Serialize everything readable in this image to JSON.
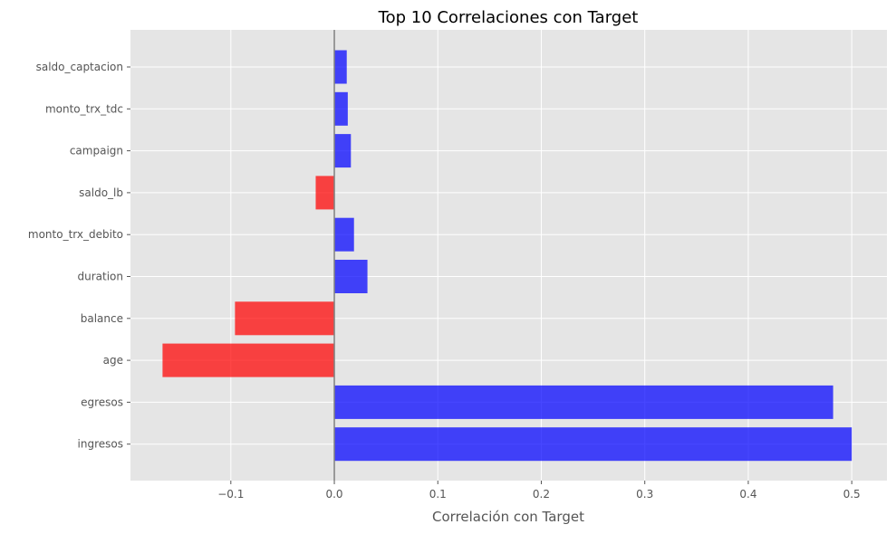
{
  "chart_data": {
    "type": "bar",
    "orientation": "horizontal",
    "title": "Top 10 Correlaciones con Target",
    "xlabel": "Correlación con Target",
    "ylabel": "",
    "categories": [
      "saldo_captacion",
      "monto_trx_tdc",
      "campaign",
      "saldo_lb",
      "monto_trx_debito",
      "duration",
      "balance",
      "age",
      "egresos",
      "ingresos"
    ],
    "values": [
      0.012,
      0.013,
      0.016,
      -0.018,
      0.019,
      0.032,
      -0.096,
      -0.166,
      0.482,
      0.5
    ],
    "x_ticks": [
      -0.1,
      0.0,
      0.1,
      0.2,
      0.3,
      0.4,
      0.5
    ],
    "x_tick_labels": [
      "−0.1",
      "0.0",
      "0.1",
      "0.2",
      "0.3",
      "0.4",
      "0.5"
    ],
    "xlim": [
      -0.197,
      0.534
    ],
    "grid": true,
    "positive_color": "#0000ff",
    "negative_color": "#ff0000",
    "background_color": "#e5e5e5",
    "grid_color": "#ffffff",
    "zero_line_color": "#808080"
  }
}
